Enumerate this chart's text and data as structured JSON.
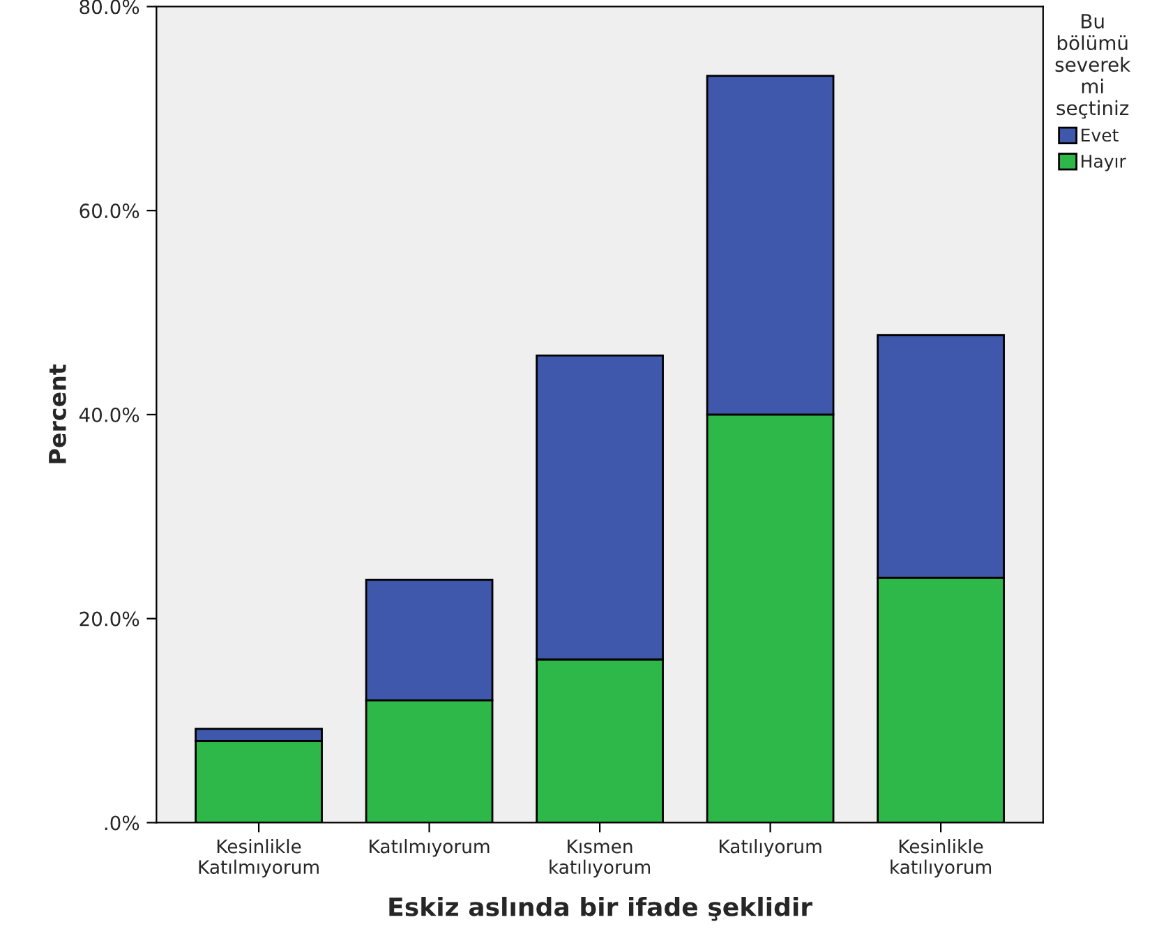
{
  "chart_data": {
    "type": "bar",
    "stacked": true,
    "xlabel": "Eskiz aslında bir ifade şeklidir",
    "ylabel": "Percent",
    "legend_title": "Bu\nbölümü\nseverek\nmi\nseçtiniz",
    "categories": [
      "Kesinlikle\nKatılmıyorum",
      "Katılmıyorum",
      "Kısmen\nkatılıyorum",
      "Katılıyorum",
      "Kesinlikle\nkatılıyorum"
    ],
    "series": [
      {
        "name": "Hayır",
        "color": "#2fb84a",
        "values": [
          8.0,
          12.0,
          16.0,
          40.0,
          24.0
        ]
      },
      {
        "name": "Evet",
        "color": "#3f58ab",
        "values": [
          1.2,
          11.8,
          29.8,
          33.2,
          23.8
        ]
      }
    ],
    "ylim": [
      0,
      80
    ],
    "yticks": [
      {
        "value": 0,
        "label": ".0%"
      },
      {
        "value": 20,
        "label": "20.0%"
      },
      {
        "value": 40,
        "label": "40.0%"
      },
      {
        "value": 60,
        "label": "60.0%"
      },
      {
        "value": 80,
        "label": "80.0%"
      }
    ],
    "grid": false,
    "legend": "right"
  }
}
